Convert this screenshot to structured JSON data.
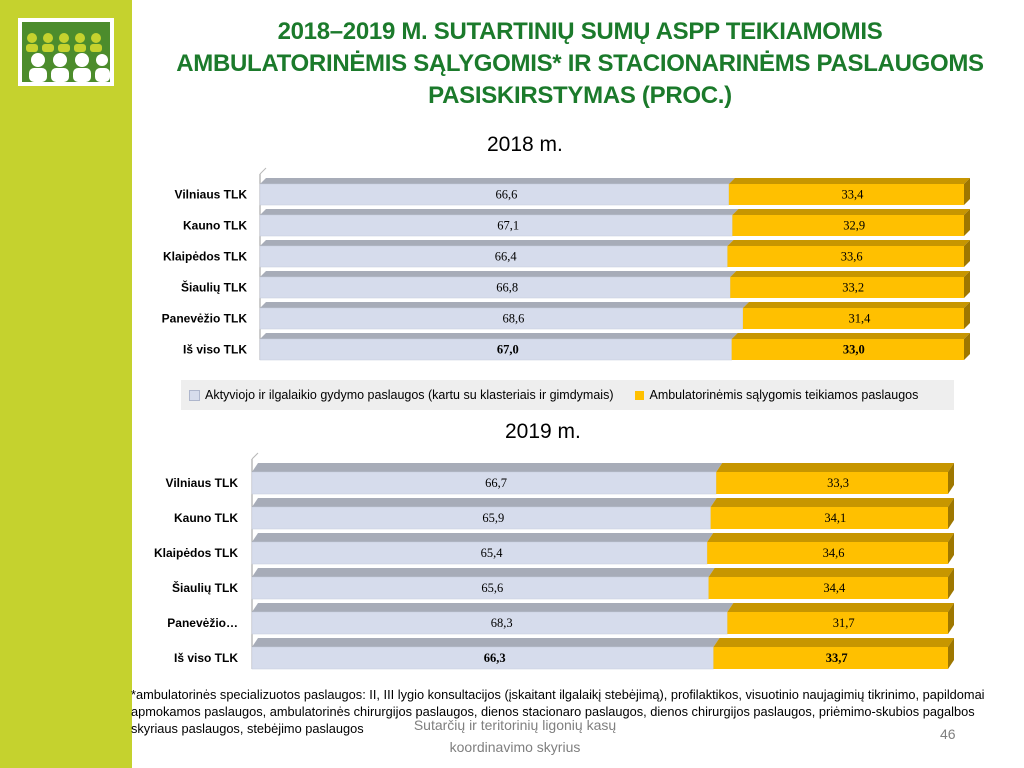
{
  "title_lines": [
    "2018–2019 M. SUTARTINIŲ SUMŲ ASPP TEIKIAMOMIS",
    "AMBULATORINĖMIS SĄLYGOMIS* IR STACIONARINĖMS PASLAUGOMS",
    "PASISKIRSTYMAS (PROC.)"
  ],
  "colors": {
    "sidebar": "#c5d22e",
    "title": "#1b7a2b",
    "series_inpatient": "#d6dcec",
    "series_outpatient": "#ffc000"
  },
  "chart_data": [
    {
      "type": "bar",
      "orientation": "horizontal",
      "stacked": true,
      "title": "2018 m.",
      "categories": [
        "Vilniaus TLK",
        "Kauno TLK",
        "Klaipėdos TLK",
        "Šiaulių TLK",
        "Panevėžio TLK",
        "Iš viso TLK"
      ],
      "series": [
        {
          "name": "Aktyviojo ir ilgalaikio gydymo paslaugos (kartu su klasteriais ir gimdymais)",
          "values": [
            "66,6",
            "67,1",
            "66,4",
            "66,8",
            "68,6",
            "67,0"
          ]
        },
        {
          "name": "Ambulatorinėmis sąlygomis teikiamos paslaugos",
          "values": [
            "33,4",
            "32,9",
            "33,6",
            "33,2",
            "31,4",
            "33,0"
          ]
        }
      ],
      "xlim": [
        0,
        100
      ],
      "legend": "bottom",
      "bold_last_row": true
    },
    {
      "type": "bar",
      "orientation": "horizontal",
      "stacked": true,
      "title": "2019 m.",
      "categories": [
        "Vilniaus TLK",
        "Kauno TLK",
        "Klaipėdos TLK",
        "Šiaulių TLK",
        "Panevėžio…",
        "Iš viso TLK"
      ],
      "series": [
        {
          "values": [
            "66,7",
            "65,9",
            "65,4",
            "65,6",
            "68,3",
            "66,3"
          ]
        },
        {
          "values": [
            "33,3",
            "34,1",
            "34,6",
            "34,4",
            "31,7",
            "33,7"
          ]
        }
      ],
      "xlim": [
        0,
        100
      ],
      "legend": "none",
      "bold_last_row": true
    }
  ],
  "footnote": "*ambulatorinės specializuotos paslaugos: II, III lygio konsultacijos (įskaitant ilgalaikį stebėjimą), profilaktikos, visuotinio naujagimių tikrinimo, papildomai apmokamos paslaugos, ambulatorinės chirurgijos paslaugos, dienos stacionaro paslaugos, dienos chirurgijos paslaugos, priėmimo-skubios pagalbos skyriaus paslaugos, stebėjimo paslaugos",
  "footer": {
    "department_line1": "Sutarčių ir teritorinių ligonių kasų",
    "department_line2": "koordinavimo skyrius",
    "page_number": "46"
  }
}
